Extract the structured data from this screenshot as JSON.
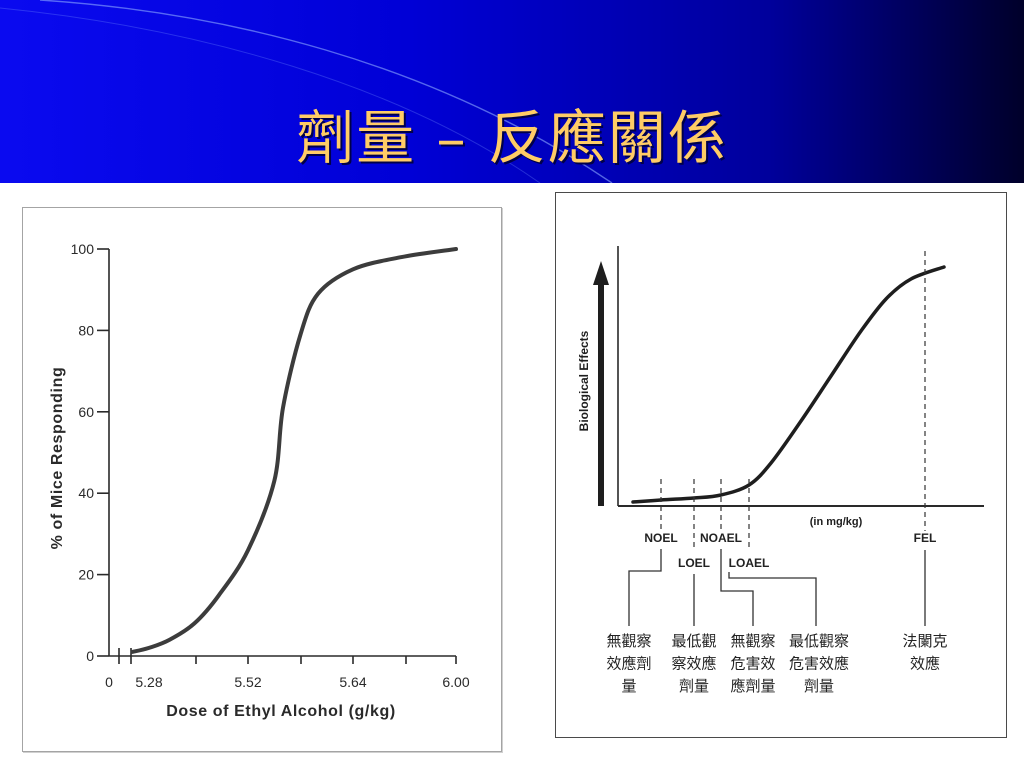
{
  "slide": {
    "title": "劑量 – 反應關係",
    "colors": {
      "banner_left": "#0a0af0",
      "banner_right": "#00002a",
      "title": "#ffcc66"
    }
  },
  "chart_data": [
    {
      "type": "line",
      "xlabel": "Dose of Ethyl Alcohol (g/kg)",
      "ylabel": "% of Mice Responding",
      "xtick_labels": [
        "0",
        "5.28",
        "5.52",
        "5.64",
        "6.00"
      ],
      "ytick_labels": [
        "0",
        "20",
        "40",
        "60",
        "80",
        "100"
      ],
      "ylim": [
        0,
        100
      ],
      "x_axis_break": true,
      "grid": false,
      "x": [
        5.24,
        5.28,
        5.33,
        5.39,
        5.45,
        5.52,
        5.55,
        5.56,
        5.58,
        5.6,
        5.64,
        5.81,
        6.0
      ],
      "series": [
        {
          "values": [
            1,
            2,
            4,
            8,
            15,
            26,
            43,
            61,
            79,
            89,
            95,
            98,
            100
          ]
        }
      ]
    },
    {
      "type": "line",
      "xlabel": "(in mg/kg)",
      "ylabel": "Biological Effects",
      "grid": false,
      "markers": [
        {
          "label": "NOEL",
          "meaning_lines": [
            "無觀察",
            "效應劑",
            "量"
          ]
        },
        {
          "label": "LOEL",
          "meaning_lines": [
            "最低觀",
            "察效應",
            "劑量"
          ]
        },
        {
          "label": "NOAEL",
          "meaning_lines": [
            "無觀察",
            "危害效",
            "應劑量"
          ]
        },
        {
          "label": "LOAEL",
          "meaning_lines": [
            "最低觀察",
            "危害效應",
            "劑量"
          ]
        },
        {
          "label": "FEL",
          "meaning_lines": [
            "法闌克",
            "效應"
          ]
        }
      ]
    }
  ]
}
